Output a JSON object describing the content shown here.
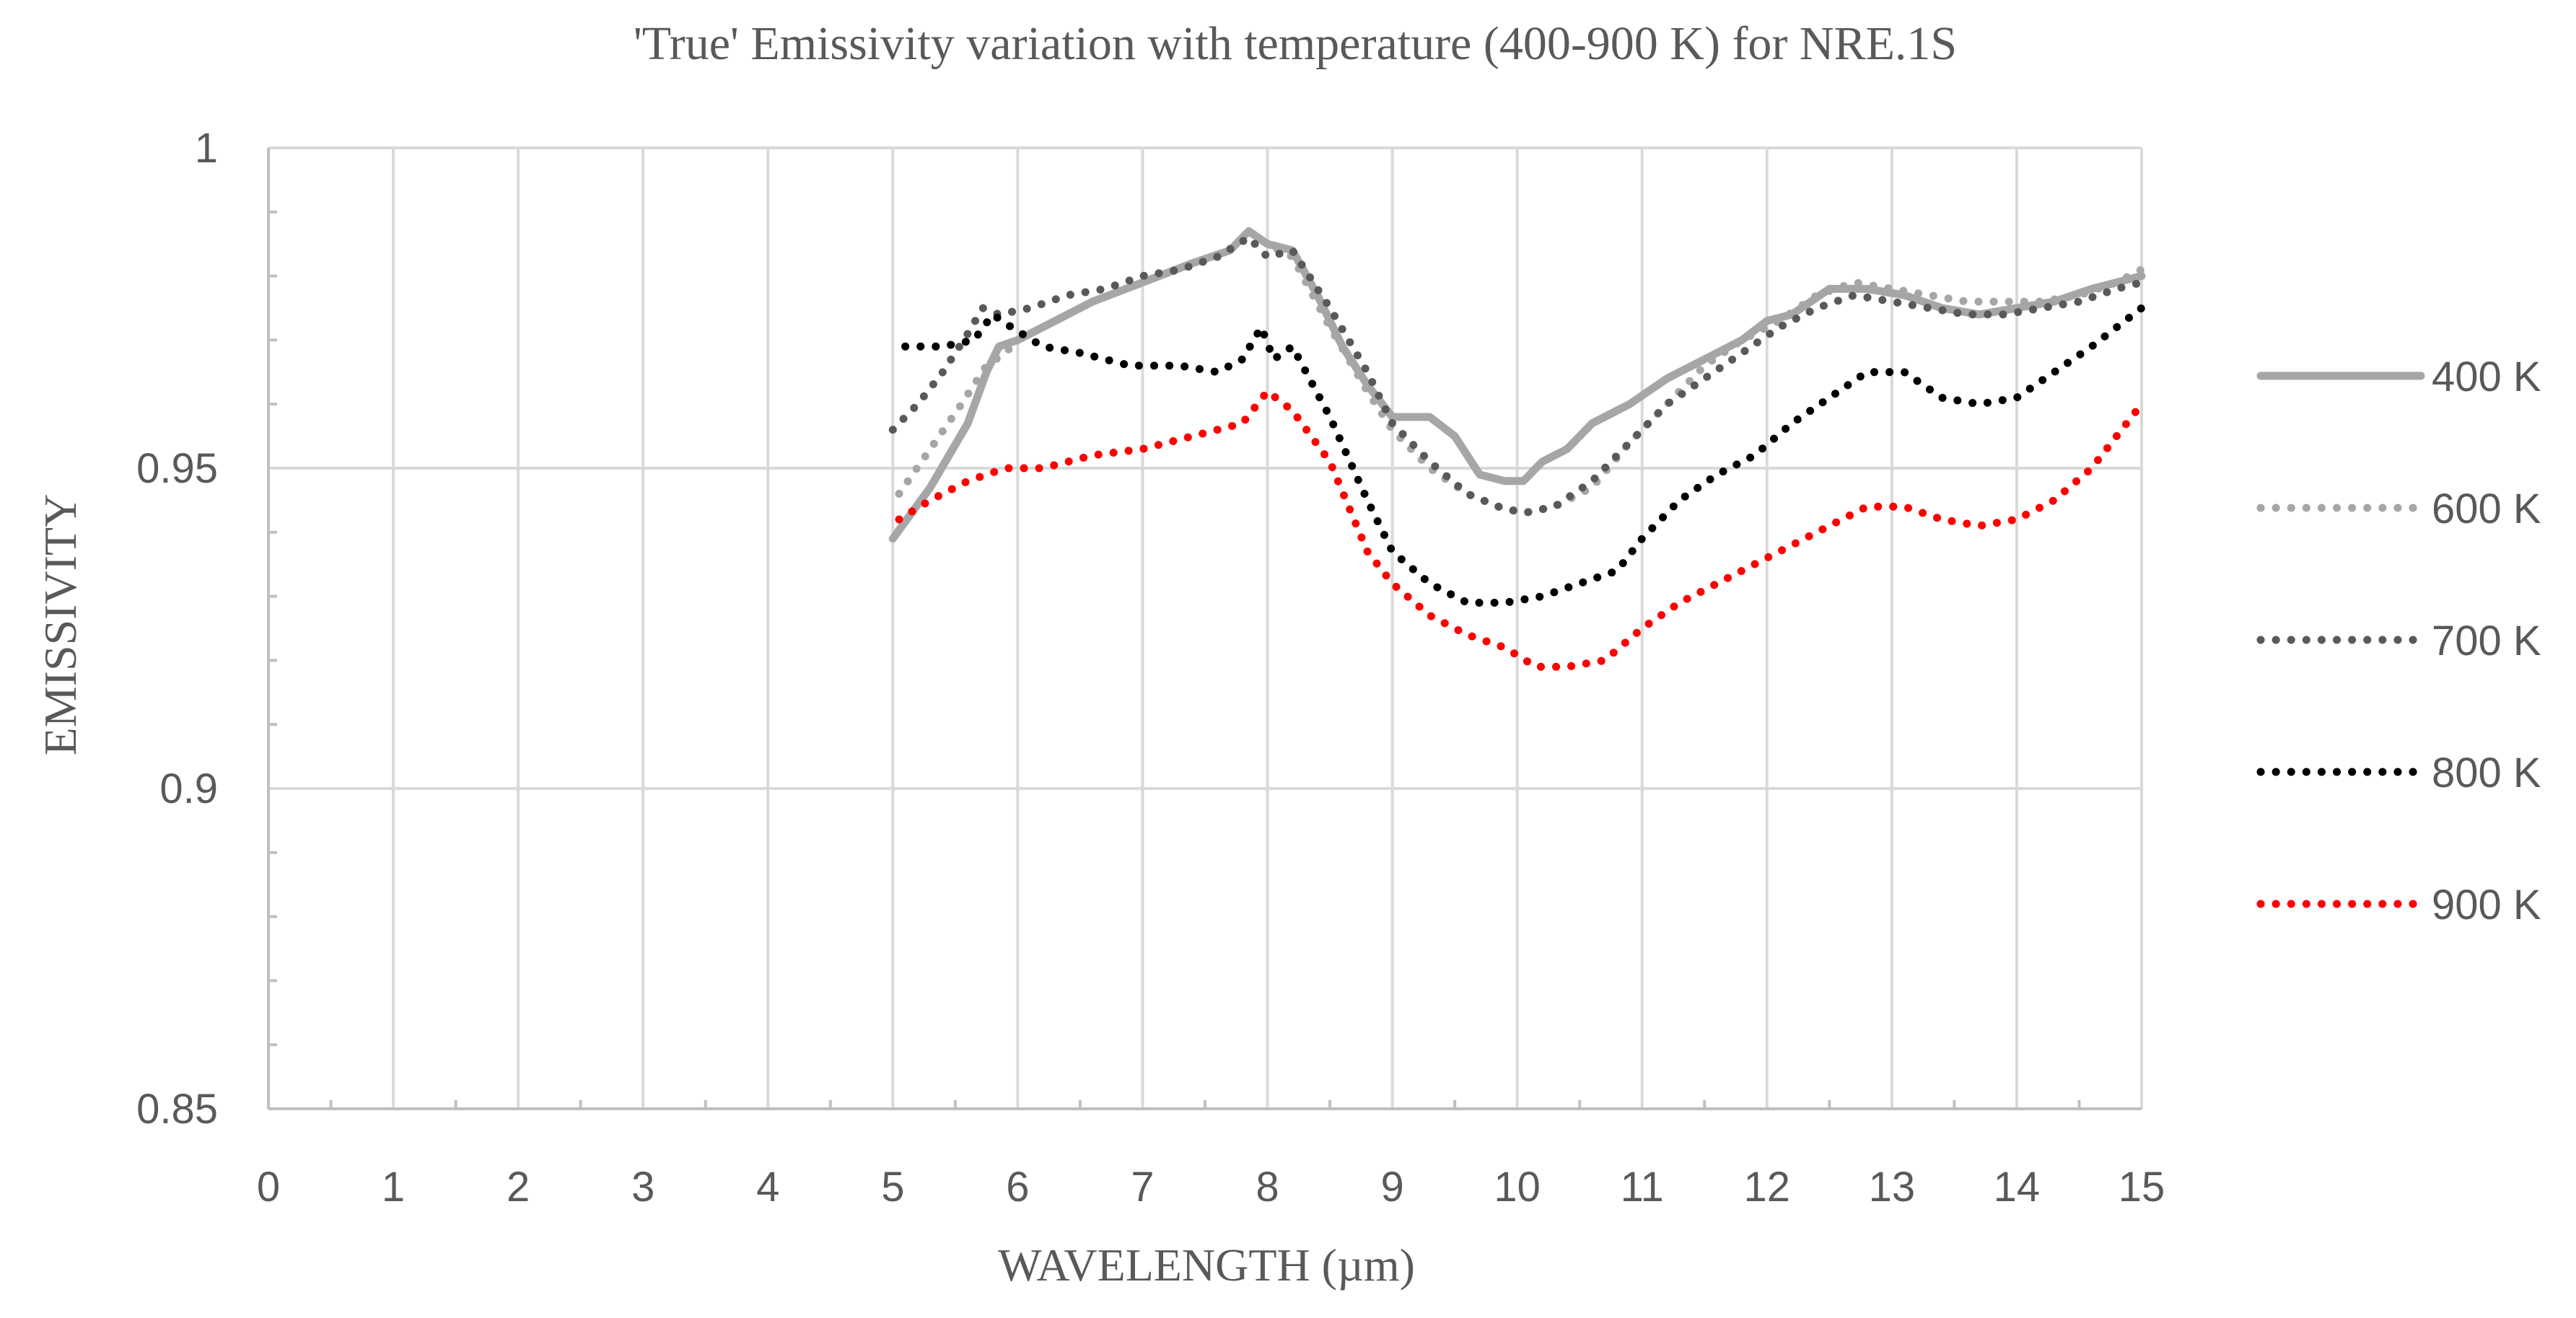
{
  "chart_data": {
    "type": "line",
    "title": "'True' Emissivity variation with temperature (400-900 K) for NRE.1S",
    "xlabel": "WAVELENGTH (µm)",
    "ylabel": "EMISSIVITY",
    "xlim": [
      0,
      15
    ],
    "ylim": [
      0.85,
      1
    ],
    "x_ticks": [
      "0",
      "1",
      "2",
      "3",
      "4",
      "5",
      "6",
      "7",
      "8",
      "9",
      "10",
      "11",
      "12",
      "13",
      "14",
      "15"
    ],
    "y_ticks": [
      "0.85",
      "0.9",
      "0.95",
      "1"
    ],
    "grid": true,
    "legend_position": "right",
    "series": [
      {
        "name": "400 K",
        "color": "#a6a6a6",
        "style": "solid",
        "points": [
          [
            5.0,
            0.939
          ],
          [
            5.3,
            0.947
          ],
          [
            5.6,
            0.957
          ],
          [
            5.75,
            0.965
          ],
          [
            5.85,
            0.969
          ],
          [
            6.0,
            0.97
          ],
          [
            6.3,
            0.973
          ],
          [
            6.6,
            0.976
          ],
          [
            7.0,
            0.979
          ],
          [
            7.4,
            0.982
          ],
          [
            7.7,
            0.984
          ],
          [
            7.85,
            0.987
          ],
          [
            8.0,
            0.985
          ],
          [
            8.2,
            0.984
          ],
          [
            8.4,
            0.977
          ],
          [
            8.6,
            0.969
          ],
          [
            8.8,
            0.963
          ],
          [
            9.0,
            0.958
          ],
          [
            9.3,
            0.958
          ],
          [
            9.5,
            0.955
          ],
          [
            9.7,
            0.949
          ],
          [
            9.9,
            0.948
          ],
          [
            10.05,
            0.948
          ],
          [
            10.2,
            0.951
          ],
          [
            10.4,
            0.953
          ],
          [
            10.6,
            0.957
          ],
          [
            10.9,
            0.96
          ],
          [
            11.2,
            0.964
          ],
          [
            11.5,
            0.967
          ],
          [
            11.8,
            0.97
          ],
          [
            12.0,
            0.973
          ],
          [
            12.2,
            0.974
          ],
          [
            12.5,
            0.978
          ],
          [
            12.8,
            0.978
          ],
          [
            13.1,
            0.977
          ],
          [
            13.4,
            0.975
          ],
          [
            13.7,
            0.974
          ],
          [
            14.0,
            0.975
          ],
          [
            14.3,
            0.976
          ],
          [
            14.6,
            0.978
          ],
          [
            15.0,
            0.98
          ]
        ]
      },
      {
        "name": "600 K",
        "color": "#a6a6a6",
        "style": "dotted",
        "points": [
          [
            5.05,
            0.946
          ],
          [
            5.3,
            0.953
          ],
          [
            5.55,
            0.96
          ],
          [
            5.75,
            0.966
          ],
          [
            5.9,
            0.968
          ],
          [
            6.0,
            0.97
          ],
          [
            6.3,
            0.973
          ],
          [
            6.6,
            0.976
          ],
          [
            7.0,
            0.979
          ],
          [
            7.4,
            0.982
          ],
          [
            7.7,
            0.984
          ],
          [
            7.85,
            0.987
          ],
          [
            8.0,
            0.985
          ],
          [
            8.2,
            0.983
          ],
          [
            8.5,
            0.972
          ],
          [
            8.8,
            0.962
          ],
          [
            9.0,
            0.956
          ],
          [
            9.3,
            0.95
          ],
          [
            9.6,
            0.946
          ],
          [
            9.85,
            0.944
          ],
          [
            10.05,
            0.943
          ],
          [
            10.3,
            0.944
          ],
          [
            10.6,
            0.947
          ],
          [
            10.9,
            0.954
          ],
          [
            11.2,
            0.96
          ],
          [
            11.5,
            0.966
          ],
          [
            11.8,
            0.97
          ],
          [
            12.1,
            0.973
          ],
          [
            12.4,
            0.977
          ],
          [
            12.7,
            0.979
          ],
          [
            13.0,
            0.978
          ],
          [
            13.3,
            0.977
          ],
          [
            13.6,
            0.976
          ],
          [
            13.9,
            0.976
          ],
          [
            14.2,
            0.976
          ],
          [
            14.5,
            0.977
          ],
          [
            14.8,
            0.979
          ],
          [
            15.0,
            0.981
          ]
        ]
      },
      {
        "name": "700 K",
        "color": "#595959",
        "style": "dotted",
        "points": [
          [
            5.0,
            0.956
          ],
          [
            5.2,
            0.96
          ],
          [
            5.4,
            0.965
          ],
          [
            5.6,
            0.971
          ],
          [
            5.72,
            0.975
          ],
          [
            5.85,
            0.974
          ],
          [
            6.1,
            0.975
          ],
          [
            6.4,
            0.977
          ],
          [
            6.7,
            0.978
          ],
          [
            7.0,
            0.98
          ],
          [
            7.3,
            0.981
          ],
          [
            7.6,
            0.983
          ],
          [
            7.85,
            0.986
          ],
          [
            8.0,
            0.983
          ],
          [
            8.2,
            0.984
          ],
          [
            8.5,
            0.975
          ],
          [
            8.8,
            0.965
          ],
          [
            9.0,
            0.957
          ],
          [
            9.3,
            0.951
          ],
          [
            9.6,
            0.946
          ],
          [
            9.85,
            0.944
          ],
          [
            10.05,
            0.943
          ],
          [
            10.3,
            0.944
          ],
          [
            10.6,
            0.948
          ],
          [
            10.9,
            0.954
          ],
          [
            11.2,
            0.96
          ],
          [
            11.5,
            0.964
          ],
          [
            11.8,
            0.968
          ],
          [
            12.1,
            0.972
          ],
          [
            12.4,
            0.975
          ],
          [
            12.7,
            0.977
          ],
          [
            13.0,
            0.976
          ],
          [
            13.3,
            0.975
          ],
          [
            13.6,
            0.974
          ],
          [
            13.9,
            0.974
          ],
          [
            14.2,
            0.975
          ],
          [
            14.5,
            0.976
          ],
          [
            14.8,
            0.978
          ],
          [
            15.0,
            0.979
          ]
        ]
      },
      {
        "name": "800 K",
        "color": "#000000",
        "style": "dotted",
        "points": [
          [
            5.1,
            0.969
          ],
          [
            5.4,
            0.969
          ],
          [
            5.65,
            0.97
          ],
          [
            5.8,
            0.974
          ],
          [
            5.95,
            0.972
          ],
          [
            6.2,
            0.969
          ],
          [
            6.5,
            0.968
          ],
          [
            6.9,
            0.966
          ],
          [
            7.3,
            0.966
          ],
          [
            7.6,
            0.965
          ],
          [
            7.8,
            0.967
          ],
          [
            7.95,
            0.972
          ],
          [
            8.05,
            0.967
          ],
          [
            8.2,
            0.969
          ],
          [
            8.5,
            0.958
          ],
          [
            8.8,
            0.945
          ],
          [
            9.0,
            0.937
          ],
          [
            9.3,
            0.932
          ],
          [
            9.6,
            0.929
          ],
          [
            9.9,
            0.929
          ],
          [
            10.2,
            0.93
          ],
          [
            10.5,
            0.932
          ],
          [
            10.8,
            0.934
          ],
          [
            11.0,
            0.939
          ],
          [
            11.3,
            0.945
          ],
          [
            11.6,
            0.949
          ],
          [
            11.9,
            0.952
          ],
          [
            12.2,
            0.957
          ],
          [
            12.5,
            0.961
          ],
          [
            12.8,
            0.965
          ],
          [
            13.1,
            0.965
          ],
          [
            13.4,
            0.961
          ],
          [
            13.7,
            0.96
          ],
          [
            14.0,
            0.961
          ],
          [
            14.3,
            0.965
          ],
          [
            14.6,
            0.969
          ],
          [
            15.0,
            0.975
          ]
        ]
      },
      {
        "name": "900 K",
        "color": "#ff0000",
        "style": "dotted",
        "points": [
          [
            5.05,
            0.942
          ],
          [
            5.3,
            0.945
          ],
          [
            5.6,
            0.948
          ],
          [
            5.9,
            0.95
          ],
          [
            6.2,
            0.95
          ],
          [
            6.6,
            0.952
          ],
          [
            7.0,
            0.953
          ],
          [
            7.4,
            0.955
          ],
          [
            7.8,
            0.957
          ],
          [
            8.0,
            0.962
          ],
          [
            8.2,
            0.959
          ],
          [
            8.5,
            0.951
          ],
          [
            8.8,
            0.937
          ],
          [
            9.0,
            0.932
          ],
          [
            9.3,
            0.927
          ],
          [
            9.6,
            0.924
          ],
          [
            9.9,
            0.922
          ],
          [
            10.15,
            0.919
          ],
          [
            10.4,
            0.919
          ],
          [
            10.7,
            0.92
          ],
          [
            11.0,
            0.925
          ],
          [
            11.3,
            0.929
          ],
          [
            11.6,
            0.932
          ],
          [
            11.9,
            0.935
          ],
          [
            12.2,
            0.938
          ],
          [
            12.5,
            0.941
          ],
          [
            12.8,
            0.944
          ],
          [
            13.1,
            0.944
          ],
          [
            13.4,
            0.942
          ],
          [
            13.7,
            0.941
          ],
          [
            14.0,
            0.942
          ],
          [
            14.3,
            0.945
          ],
          [
            14.6,
            0.95
          ],
          [
            15.0,
            0.96
          ]
        ]
      }
    ]
  }
}
